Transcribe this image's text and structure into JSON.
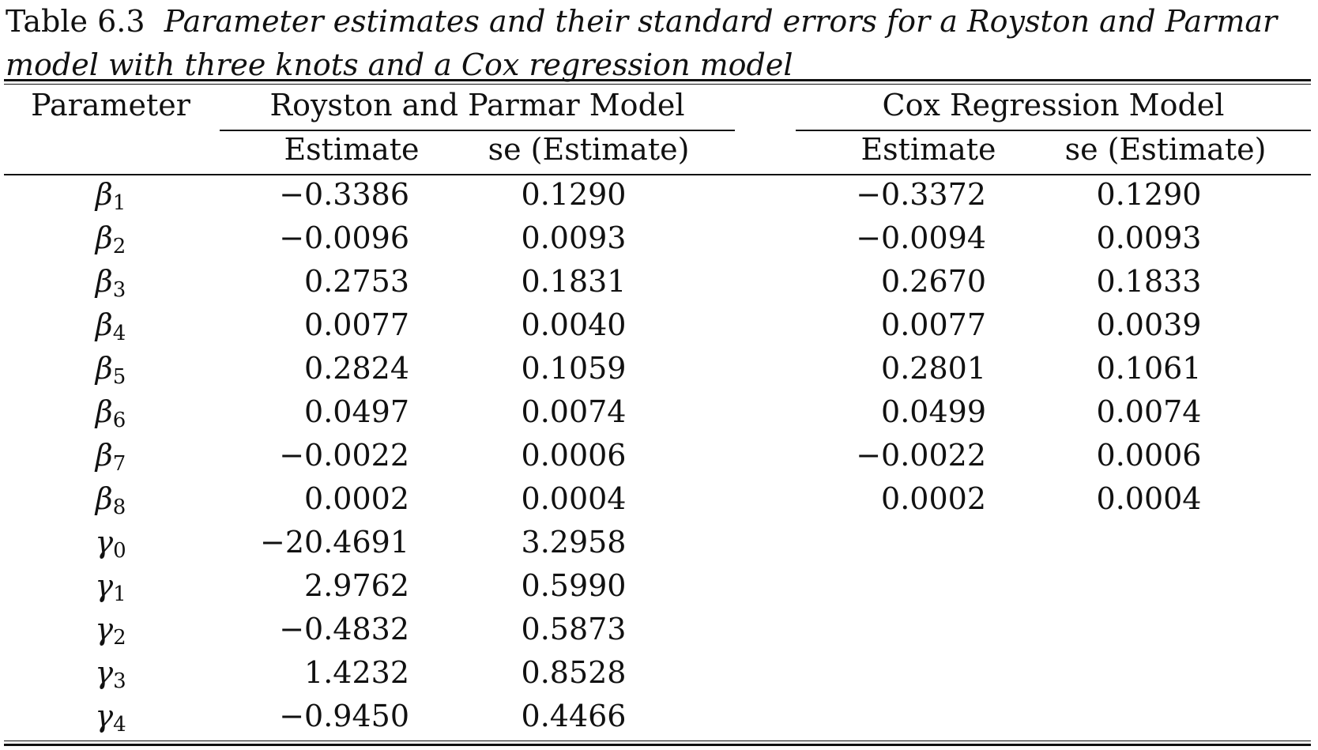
{
  "caption": {
    "label": "Table 6.3",
    "text": "Parameter estimates and their standard errors for a Royston and Parmar model with three knots and a Cox regression model"
  },
  "table": {
    "header": {
      "parameter": "Parameter",
      "group_rp": "Royston and Parmar Model",
      "group_cox": "Cox Regression Model",
      "estimate": "Estimate",
      "se": "se (Estimate)"
    },
    "rows": [
      {
        "symbol": "β",
        "index": "1",
        "rp_est": "−0.3386",
        "rp_se": "0.1290",
        "cox_est": "−0.3372",
        "cox_se": "0.1290"
      },
      {
        "symbol": "β",
        "index": "2",
        "rp_est": "−0.0096",
        "rp_se": "0.0093",
        "cox_est": "−0.0094",
        "cox_se": "0.0093"
      },
      {
        "symbol": "β",
        "index": "3",
        "rp_est": "0.2753",
        "rp_se": "0.1831",
        "cox_est": "0.2670",
        "cox_se": "0.1833"
      },
      {
        "symbol": "β",
        "index": "4",
        "rp_est": "0.0077",
        "rp_se": "0.0040",
        "cox_est": "0.0077",
        "cox_se": "0.0039"
      },
      {
        "symbol": "β",
        "index": "5",
        "rp_est": "0.2824",
        "rp_se": "0.1059",
        "cox_est": "0.2801",
        "cox_se": "0.1061"
      },
      {
        "symbol": "β",
        "index": "6",
        "rp_est": "0.0497",
        "rp_se": "0.0074",
        "cox_est": "0.0499",
        "cox_se": "0.0074"
      },
      {
        "symbol": "β",
        "index": "7",
        "rp_est": "−0.0022",
        "rp_se": "0.0006",
        "cox_est": "−0.0022",
        "cox_se": "0.0006"
      },
      {
        "symbol": "β",
        "index": "8",
        "rp_est": "0.0002",
        "rp_se": "0.0004",
        "cox_est": "0.0002",
        "cox_se": "0.0004"
      },
      {
        "symbol": "γ",
        "index": "0",
        "rp_est": "−20.4691",
        "rp_se": "3.2958",
        "cox_est": "",
        "cox_se": ""
      },
      {
        "symbol": "γ",
        "index": "1",
        "rp_est": "2.9762",
        "rp_se": "0.5990",
        "cox_est": "",
        "cox_se": ""
      },
      {
        "symbol": "γ",
        "index": "2",
        "rp_est": "−0.4832",
        "rp_se": "0.5873",
        "cox_est": "",
        "cox_se": ""
      },
      {
        "symbol": "γ",
        "index": "3",
        "rp_est": "1.4232",
        "rp_se": "0.8528",
        "cox_est": "",
        "cox_se": ""
      },
      {
        "symbol": "γ",
        "index": "4",
        "rp_est": "−0.9450",
        "rp_se": "0.4466",
        "cox_est": "",
        "cox_se": ""
      }
    ]
  }
}
